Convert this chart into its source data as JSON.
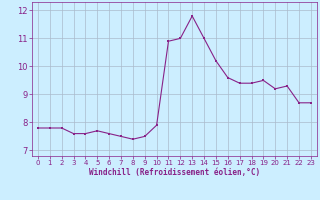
{
  "x": [
    0,
    1,
    2,
    3,
    4,
    5,
    6,
    7,
    8,
    9,
    10,
    11,
    12,
    13,
    14,
    15,
    16,
    17,
    18,
    19,
    20,
    21,
    22,
    23
  ],
  "y": [
    7.8,
    7.8,
    7.8,
    7.6,
    7.6,
    7.7,
    7.6,
    7.5,
    7.4,
    7.5,
    7.9,
    10.9,
    11.0,
    11.8,
    11.0,
    10.2,
    9.6,
    9.4,
    9.4,
    9.5,
    9.2,
    9.3,
    8.7,
    8.7
  ],
  "line_color": "#882288",
  "marker": "s",
  "marker_size": 2.0,
  "bg_color": "#cceeff",
  "grid_color": "#aabbcc",
  "xlabel": "Windchill (Refroidissement éolien,°C)",
  "xlabel_color": "#882288",
  "tick_color": "#882288",
  "ylim": [
    6.8,
    12.3
  ],
  "xlim": [
    -0.5,
    23.5
  ],
  "yticks": [
    7,
    8,
    9,
    10,
    11,
    12
  ],
  "xticks": [
    0,
    1,
    2,
    3,
    4,
    5,
    6,
    7,
    8,
    9,
    10,
    11,
    12,
    13,
    14,
    15,
    16,
    17,
    18,
    19,
    20,
    21,
    22,
    23
  ]
}
